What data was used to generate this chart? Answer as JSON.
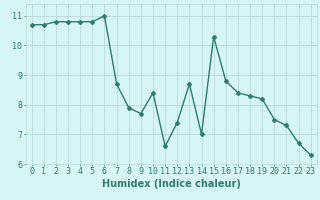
{
  "x": [
    0,
    1,
    2,
    3,
    4,
    5,
    6,
    7,
    8,
    9,
    10,
    11,
    12,
    13,
    14,
    15,
    16,
    17,
    18,
    19,
    20,
    21,
    22,
    23
  ],
  "y": [
    10.7,
    10.7,
    10.8,
    10.8,
    10.8,
    10.8,
    11.0,
    8.7,
    7.9,
    7.7,
    8.4,
    6.6,
    7.4,
    8.7,
    7.0,
    10.3,
    8.8,
    8.4,
    8.3,
    8.2,
    7.5,
    7.3,
    6.7,
    6.3
  ],
  "line_color": "#2e7d6e",
  "marker": "D",
  "marker_size": 2,
  "line_width": 1.0,
  "xlabel": "Humidex (Indice chaleur)",
  "xlabel_fontsize": 7,
  "xlabel_bold": true,
  "bg_color": "#d6f5f5",
  "grid_color": "#b8dada",
  "tick_color": "#2e7d6e",
  "xlim": [
    -0.5,
    23.5
  ],
  "ylim": [
    6,
    11.4
  ],
  "yticks": [
    6,
    7,
    8,
    9,
    10,
    11
  ],
  "xticks": [
    0,
    1,
    2,
    3,
    4,
    5,
    6,
    7,
    8,
    9,
    10,
    11,
    12,
    13,
    14,
    15,
    16,
    17,
    18,
    19,
    20,
    21,
    22,
    23
  ],
  "tick_fontsize": 6
}
